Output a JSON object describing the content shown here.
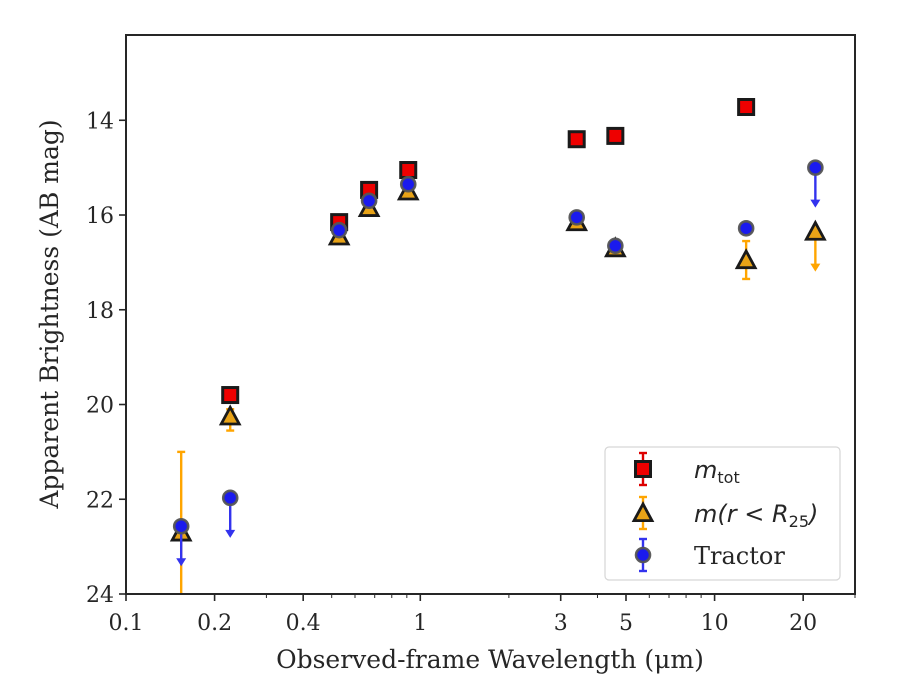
{
  "chart_data": {
    "type": "scatter",
    "xlabel": "Observed-frame Wavelength (μm)",
    "ylabel": "Apparent Brightness (AB mag)",
    "x_scale": "log",
    "xlim": [
      0.1,
      30
    ],
    "ylim": [
      24,
      12.2
    ],
    "y_inverted": true,
    "x_ticks": [
      {
        "value": 0.1,
        "label": "0.1"
      },
      {
        "value": 0.2,
        "label": "0.2"
      },
      {
        "value": 0.4,
        "label": "0.4"
      },
      {
        "value": 1,
        "label": "1"
      },
      {
        "value": 3,
        "label": "3"
      },
      {
        "value": 5,
        "label": "5"
      },
      {
        "value": 10,
        "label": "10"
      },
      {
        "value": 20,
        "label": "20"
      }
    ],
    "y_ticks": [
      {
        "value": 14,
        "label": "14"
      },
      {
        "value": 16,
        "label": "16"
      },
      {
        "value": 18,
        "label": "18"
      },
      {
        "value": 20,
        "label": "20"
      },
      {
        "value": 22,
        "label": "22"
      },
      {
        "value": 24,
        "label": "24"
      }
    ],
    "grid": false,
    "legend_position": "lower-right",
    "series": [
      {
        "name_main": "m",
        "name_sub": "tot",
        "marker": "square",
        "color": "#ee0000",
        "errcolor": "#dd0000",
        "points": [
          {
            "x": 0.53,
            "y": 16.15
          },
          {
            "x": 0.67,
            "y": 15.47
          },
          {
            "x": 0.91,
            "y": 15.05
          },
          {
            "x": 0.226,
            "y": 19.8
          },
          {
            "x": 3.4,
            "y": 14.4
          },
          {
            "x": 4.6,
            "y": 14.33
          },
          {
            "x": 12.8,
            "y": 13.72
          }
        ]
      },
      {
        "name_main": "m(r < R",
        "name_sub": "25",
        "name_end": ")",
        "marker": "triangle",
        "color": "#e8a317",
        "errcolor": "#ffa500",
        "points": [
          {
            "x": 0.154,
            "y": 22.7,
            "err": [
              21.0,
              24.0
            ]
          },
          {
            "x": 0.226,
            "y": 20.25,
            "err": [
              20.1,
              20.55
            ]
          },
          {
            "x": 0.53,
            "y": 16.45
          },
          {
            "x": 0.67,
            "y": 15.85
          },
          {
            "x": 0.91,
            "y": 15.5
          },
          {
            "x": 3.4,
            "y": 16.15
          },
          {
            "x": 4.6,
            "y": 16.7
          },
          {
            "x": 12.8,
            "y": 16.95,
            "err": [
              16.55,
              17.35
            ]
          },
          {
            "x": 22.0,
            "y": 16.35,
            "upper_limit": true
          }
        ]
      },
      {
        "name_main": "Tractor",
        "marker": "circle",
        "color": "#1a1aee",
        "errcolor": "#3333ee",
        "points": [
          {
            "x": 0.154,
            "y": 22.57,
            "upper_limit": true
          },
          {
            "x": 0.226,
            "y": 21.97,
            "upper_limit": true
          },
          {
            "x": 0.53,
            "y": 16.32
          },
          {
            "x": 0.67,
            "y": 15.7
          },
          {
            "x": 0.91,
            "y": 15.35
          },
          {
            "x": 3.4,
            "y": 16.05
          },
          {
            "x": 4.6,
            "y": 16.65
          },
          {
            "x": 12.8,
            "y": 16.28
          },
          {
            "x": 22.0,
            "y": 15.0,
            "upper_limit": true
          }
        ]
      }
    ]
  }
}
